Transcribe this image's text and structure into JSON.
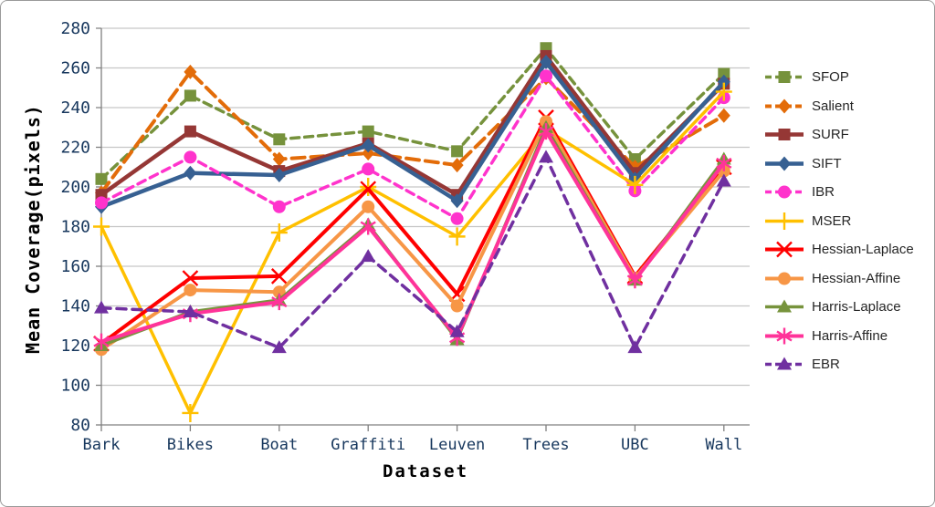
{
  "chart_data": {
    "type": "line",
    "title": "",
    "xlabel": "Dataset",
    "ylabel": "Mean Coverage(pixels)",
    "ylim": [
      80,
      280
    ],
    "ytick_step": 20,
    "grid": true,
    "legend_position": "right",
    "categories": [
      "Bark",
      "Bikes",
      "Boat",
      "Graffiti",
      "Leuven",
      "Trees",
      "UBC",
      "Wall"
    ],
    "series": [
      {
        "name": "SFOP",
        "color": "#76923C",
        "dash": "9 6",
        "marker": "square",
        "width": 3.5,
        "values": [
          204,
          246,
          224,
          228,
          218,
          270,
          214,
          257
        ]
      },
      {
        "name": "Salient",
        "color": "#E36C09",
        "dash": "14 7",
        "marker": "diamond",
        "width": 4,
        "values": [
          197,
          258,
          214,
          217,
          211,
          255,
          210,
          236
        ]
      },
      {
        "name": "SURF",
        "color": "#953735",
        "dash": "",
        "marker": "square",
        "width": 4.5,
        "values": [
          196,
          228,
          208,
          222,
          196,
          266,
          207,
          252
        ]
      },
      {
        "name": "SIFT",
        "color": "#376092",
        "dash": "",
        "marker": "diamond",
        "width": 4.5,
        "values": [
          190,
          207,
          206,
          221,
          193,
          263,
          204,
          253
        ]
      },
      {
        "name": "IBR",
        "color": "#FF33CC",
        "dash": "9 6",
        "marker": "circle",
        "width": 3.5,
        "values": [
          192,
          215,
          190,
          209,
          184,
          256,
          198,
          245
        ]
      },
      {
        "name": "MSER",
        "color": "#FFC000",
        "dash": "",
        "marker": "plus",
        "width": 3.5,
        "values": [
          180,
          86,
          177,
          200,
          175,
          229,
          201,
          248
        ]
      },
      {
        "name": "Hessian-Laplace",
        "color": "#FF0000",
        "dash": "",
        "marker": "x",
        "width": 4,
        "values": [
          121,
          154,
          155,
          199,
          146,
          235,
          155,
          210
        ]
      },
      {
        "name": "Hessian-Affine",
        "color": "#F79646",
        "dash": "",
        "marker": "circle",
        "width": 4,
        "values": [
          118,
          148,
          147,
          190,
          140,
          233,
          154,
          208
        ]
      },
      {
        "name": "Harris-Laplace",
        "color": "#77933C",
        "dash": "",
        "marker": "triangle",
        "width": 3.5,
        "values": [
          120,
          137,
          143,
          181,
          123,
          230,
          153,
          214
        ]
      },
      {
        "name": "Harris-Affine",
        "color": "#FF3399",
        "dash": "",
        "marker": "asterisk",
        "width": 4,
        "values": [
          122,
          136,
          142,
          180,
          124,
          228,
          153,
          212
        ]
      },
      {
        "name": "EBR",
        "color": "#7030A0",
        "dash": "10 7",
        "marker": "triangle",
        "width": 3.5,
        "values": [
          139,
          137,
          119,
          165,
          127,
          215,
          119,
          203
        ]
      }
    ],
    "colors": {
      "gridline": "#C6C6C6",
      "axis": "#808080",
      "tick_label": "#17375D"
    }
  }
}
